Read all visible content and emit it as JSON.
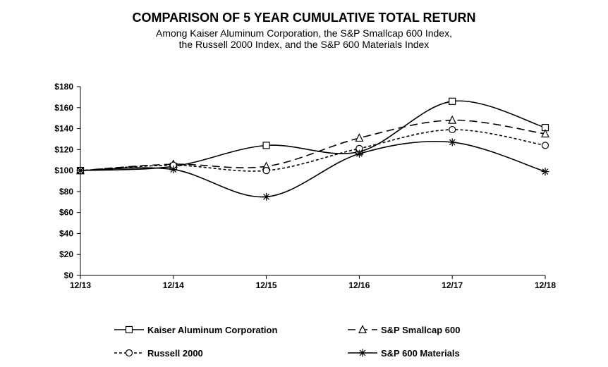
{
  "chart_data": {
    "type": "line",
    "title": "COMPARISON OF 5 YEAR CUMULATIVE TOTAL RETURN",
    "subtitle_lines": [
      "Among Kaiser Aluminum Corporation, the S&P Smallcap 600 Index,",
      "the Russell 2000 Index, and the S&P 600 Materials Index"
    ],
    "categories": [
      "12/13",
      "12/14",
      "12/15",
      "12/16",
      "12/17",
      "12/18"
    ],
    "ylim": [
      0,
      180
    ],
    "yticks": [
      0,
      20,
      40,
      60,
      80,
      100,
      120,
      140,
      160,
      180
    ],
    "ytick_labels": [
      "$0",
      "$20",
      "$40",
      "$60",
      "$80",
      "$100",
      "$120",
      "$140",
      "$160",
      "$180"
    ],
    "grid": false,
    "legend_position": "bottom",
    "series": [
      {
        "name": "Kaiser Aluminum Corporation",
        "values": [
          100,
          104,
          124,
          118,
          166,
          141
        ],
        "marker": "square",
        "dash": "solid"
      },
      {
        "name": "S&P Smallcap 600",
        "values": [
          100,
          106,
          104,
          131,
          148,
          135
        ],
        "marker": "triangle",
        "dash": "long-dash"
      },
      {
        "name": "Russell 2000",
        "values": [
          100,
          105,
          100,
          121,
          139,
          124
        ],
        "marker": "circle",
        "dash": "short-dash"
      },
      {
        "name": "S&P 600 Materials",
        "values": [
          100,
          101,
          75,
          116,
          127,
          99
        ],
        "marker": "asterisk",
        "dash": "solid"
      }
    ]
  }
}
